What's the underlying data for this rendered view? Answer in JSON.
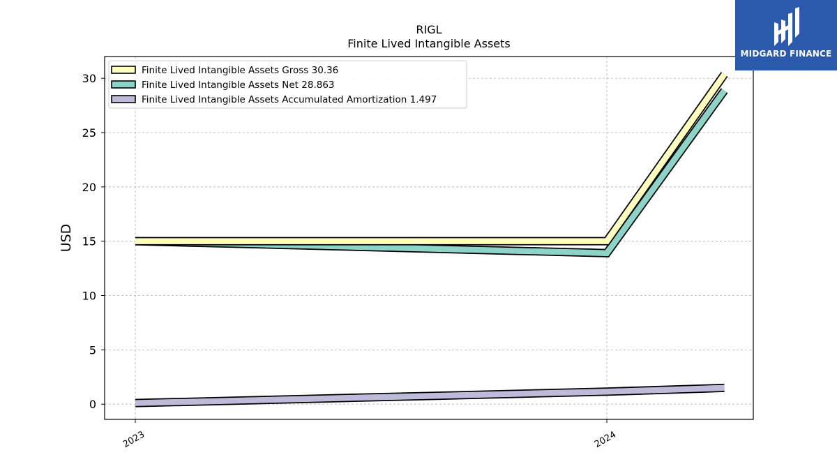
{
  "chart_data": {
    "type": "line",
    "title": "RIGL",
    "subtitle": "Finite Lived Intangible Assets",
    "ylabel": "USD",
    "xlabel": "",
    "x_ticks": [
      "2023",
      "2024"
    ],
    "y_ticks": [
      0,
      5,
      10,
      15,
      20,
      25,
      30
    ],
    "ylim": [
      -1.4,
      32
    ],
    "grid": true,
    "legend_position": "top-left",
    "series": [
      {
        "name": "Finite Lived Intangible Assets Gross",
        "legend_label": "Finite Lived Intangible Assets Gross  30.36",
        "color": "#ffffbf",
        "points": [
          [
            "2023",
            15.0
          ],
          [
            "2024",
            15.0
          ],
          [
            "2024-04",
            30.36
          ]
        ]
      },
      {
        "name": "Finite Lived Intangible Assets Net",
        "legend_label": "Finite Lived Intangible Assets Net  28.863",
        "color": "#8dd3c7",
        "points": [
          [
            "2023",
            15.0
          ],
          [
            "2024",
            13.9
          ],
          [
            "2024-04",
            28.863
          ]
        ]
      },
      {
        "name": "Finite Lived Intangible Assets Accumulated Amortization",
        "legend_label": "Finite Lived Intangible Assets Accumulated Amortization  1.497",
        "color": "#bebada",
        "points": [
          [
            "2023",
            0.1
          ],
          [
            "2024",
            1.15
          ],
          [
            "2024-04",
            1.497
          ]
        ]
      }
    ]
  },
  "logo": {
    "text": "MIDGARD FINANCE",
    "color": "#2b5aad"
  }
}
